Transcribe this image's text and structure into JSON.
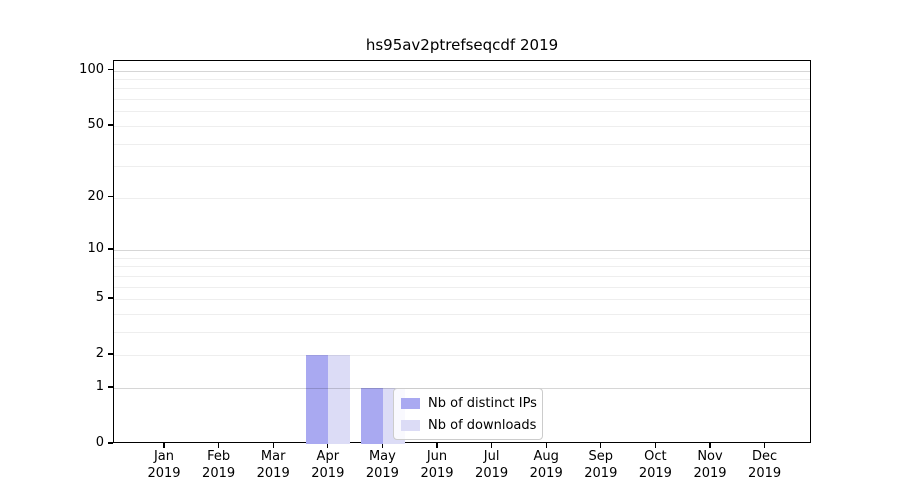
{
  "chart_data": {
    "type": "bar",
    "title": "hs95av2ptrefseqcdf 2019",
    "categories": [
      "Jan",
      "Feb",
      "Mar",
      "Apr",
      "May",
      "Jun",
      "Jul",
      "Aug",
      "Sep",
      "Oct",
      "Nov",
      "Dec"
    ],
    "year_label": "2019",
    "series": [
      {
        "name": "Nb of distinct IPs",
        "color": "#a9a9f1",
        "values": [
          0,
          0,
          0,
          2,
          1,
          0,
          0,
          0,
          0,
          0,
          0,
          0
        ]
      },
      {
        "name": "Nb of downloads",
        "color": "#dcdcf6",
        "values": [
          0,
          0,
          0,
          2,
          1,
          0,
          0,
          0,
          0,
          0,
          0,
          0
        ]
      }
    ],
    "xlabel": "",
    "ylabel": "",
    "yscale": "log1p",
    "ylim": [
      0,
      112.7
    ],
    "yticks": [
      0,
      1,
      2,
      5,
      10,
      20,
      50,
      100
    ],
    "ytick_labels": [
      "0",
      "1",
      "2",
      "5",
      "10",
      "20",
      "50",
      "100"
    ],
    "grid": {
      "on": true,
      "major": [
        1,
        10,
        100
      ],
      "minor": [
        2,
        3,
        4,
        5,
        6,
        7,
        8,
        9,
        20,
        30,
        40,
        50,
        60,
        70,
        80,
        90
      ]
    },
    "legend": {
      "position": "lower center-right, inside axes",
      "entries": [
        "Nb of distinct IPs",
        "Nb of downloads"
      ]
    }
  },
  "colors": {
    "background": "#ffffff",
    "bar_distinct_ips": "#a9a9f1",
    "bar_downloads": "#dcdcf6",
    "axis": "#000000",
    "legend_border": "#cccccc"
  }
}
